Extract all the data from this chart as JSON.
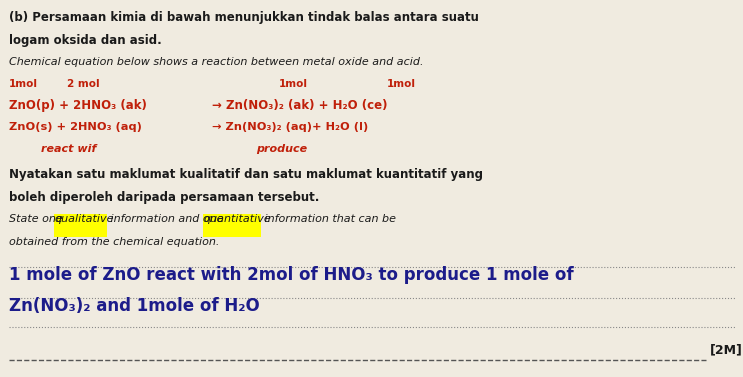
{
  "bg_color": "#f0ebe0",
  "title_line1": "(b) Persamaan kimia di bawah menunjukkan tindak balas antara suatu",
  "title_line2": "logam oksida dan asid.",
  "italic_line": "Chemical equation below shows a reaction between metal oxide and acid.",
  "mol_label_1mol": "1mol",
  "mol_label_2mol": "2 mol",
  "mol_label_1mol_r1": "1mol",
  "mol_label_1mol_r2": "1mol",
  "eq_line1_left": "ZnO(p) + 2HNO₃ (ak)",
  "eq_line1_right": "→ Zn(NO₃)₂ (ak) + H₂O (ce)",
  "eq_line2_left": "ZnO(s) + 2HNO₃ (aq)",
  "eq_line2_right": "→ Zn(NO₃)₂ (aq)+ H₂O (l)",
  "reactant_label": "react wif",
  "product_label": "produce",
  "malay_q_line1": "Nyatakan satu maklumat kualitatif dan satu maklumat kuantitatif yang",
  "malay_q_line2": "boleh diperoleh daripada persamaan tersebut.",
  "eq_pre": "State one ",
  "eq_hl1": "qualitative",
  "eq_mid": " information and one ",
  "eq_hl2": "quantitative",
  "eq_post": " information that can be",
  "eq_line2": "obtained from the chemical equation.",
  "ans_line1": "1 mole of ZnO react with 2mol of HNO₃ to produce 1 mole of",
  "ans_line2": "Zn(NO₃)₂ and 1mole of H₂O",
  "mark": "[2M]",
  "highlight_color": "#ffff00",
  "red_color": "#c0200a",
  "black_color": "#1a1a1a",
  "hw_color": "#1c1c8a",
  "line_color": "#888888"
}
